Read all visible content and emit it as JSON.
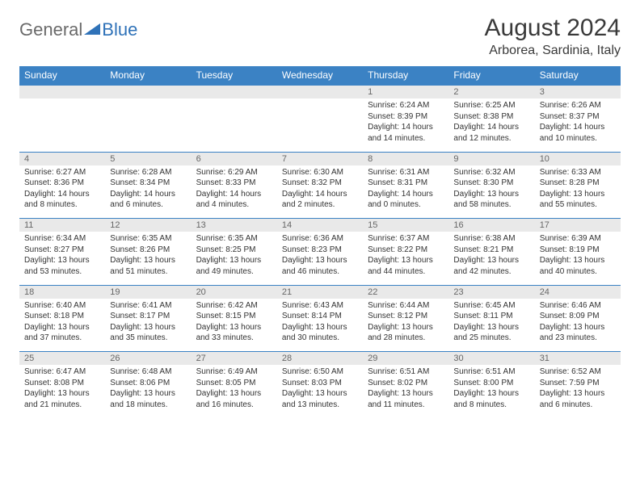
{
  "logo": {
    "general": "General",
    "blue": "Blue"
  },
  "title": "August 2024",
  "location": "Arborea, Sardinia, Italy",
  "colors": {
    "header_bg": "#3b82c4",
    "header_text": "#ffffff",
    "daynum_bg": "#e9e9e9",
    "border": "#3b82c4",
    "text": "#333333",
    "logo_gray": "#6a6a6a",
    "logo_blue": "#2f72b8"
  },
  "typography": {
    "title_fontsize": 30,
    "location_fontsize": 16,
    "header_fontsize": 12,
    "cell_fontsize": 10
  },
  "day_headers": [
    "Sunday",
    "Monday",
    "Tuesday",
    "Wednesday",
    "Thursday",
    "Friday",
    "Saturday"
  ],
  "weeks": [
    [
      {
        "n": "",
        "sr": "",
        "ss": "",
        "dl": ""
      },
      {
        "n": "",
        "sr": "",
        "ss": "",
        "dl": ""
      },
      {
        "n": "",
        "sr": "",
        "ss": "",
        "dl": ""
      },
      {
        "n": "",
        "sr": "",
        "ss": "",
        "dl": ""
      },
      {
        "n": "1",
        "sr": "Sunrise: 6:24 AM",
        "ss": "Sunset: 8:39 PM",
        "dl": "Daylight: 14 hours and 14 minutes."
      },
      {
        "n": "2",
        "sr": "Sunrise: 6:25 AM",
        "ss": "Sunset: 8:38 PM",
        "dl": "Daylight: 14 hours and 12 minutes."
      },
      {
        "n": "3",
        "sr": "Sunrise: 6:26 AM",
        "ss": "Sunset: 8:37 PM",
        "dl": "Daylight: 14 hours and 10 minutes."
      }
    ],
    [
      {
        "n": "4",
        "sr": "Sunrise: 6:27 AM",
        "ss": "Sunset: 8:36 PM",
        "dl": "Daylight: 14 hours and 8 minutes."
      },
      {
        "n": "5",
        "sr": "Sunrise: 6:28 AM",
        "ss": "Sunset: 8:34 PM",
        "dl": "Daylight: 14 hours and 6 minutes."
      },
      {
        "n": "6",
        "sr": "Sunrise: 6:29 AM",
        "ss": "Sunset: 8:33 PM",
        "dl": "Daylight: 14 hours and 4 minutes."
      },
      {
        "n": "7",
        "sr": "Sunrise: 6:30 AM",
        "ss": "Sunset: 8:32 PM",
        "dl": "Daylight: 14 hours and 2 minutes."
      },
      {
        "n": "8",
        "sr": "Sunrise: 6:31 AM",
        "ss": "Sunset: 8:31 PM",
        "dl": "Daylight: 14 hours and 0 minutes."
      },
      {
        "n": "9",
        "sr": "Sunrise: 6:32 AM",
        "ss": "Sunset: 8:30 PM",
        "dl": "Daylight: 13 hours and 58 minutes."
      },
      {
        "n": "10",
        "sr": "Sunrise: 6:33 AM",
        "ss": "Sunset: 8:28 PM",
        "dl": "Daylight: 13 hours and 55 minutes."
      }
    ],
    [
      {
        "n": "11",
        "sr": "Sunrise: 6:34 AM",
        "ss": "Sunset: 8:27 PM",
        "dl": "Daylight: 13 hours and 53 minutes."
      },
      {
        "n": "12",
        "sr": "Sunrise: 6:35 AM",
        "ss": "Sunset: 8:26 PM",
        "dl": "Daylight: 13 hours and 51 minutes."
      },
      {
        "n": "13",
        "sr": "Sunrise: 6:35 AM",
        "ss": "Sunset: 8:25 PM",
        "dl": "Daylight: 13 hours and 49 minutes."
      },
      {
        "n": "14",
        "sr": "Sunrise: 6:36 AM",
        "ss": "Sunset: 8:23 PM",
        "dl": "Daylight: 13 hours and 46 minutes."
      },
      {
        "n": "15",
        "sr": "Sunrise: 6:37 AM",
        "ss": "Sunset: 8:22 PM",
        "dl": "Daylight: 13 hours and 44 minutes."
      },
      {
        "n": "16",
        "sr": "Sunrise: 6:38 AM",
        "ss": "Sunset: 8:21 PM",
        "dl": "Daylight: 13 hours and 42 minutes."
      },
      {
        "n": "17",
        "sr": "Sunrise: 6:39 AM",
        "ss": "Sunset: 8:19 PM",
        "dl": "Daylight: 13 hours and 40 minutes."
      }
    ],
    [
      {
        "n": "18",
        "sr": "Sunrise: 6:40 AM",
        "ss": "Sunset: 8:18 PM",
        "dl": "Daylight: 13 hours and 37 minutes."
      },
      {
        "n": "19",
        "sr": "Sunrise: 6:41 AM",
        "ss": "Sunset: 8:17 PM",
        "dl": "Daylight: 13 hours and 35 minutes."
      },
      {
        "n": "20",
        "sr": "Sunrise: 6:42 AM",
        "ss": "Sunset: 8:15 PM",
        "dl": "Daylight: 13 hours and 33 minutes."
      },
      {
        "n": "21",
        "sr": "Sunrise: 6:43 AM",
        "ss": "Sunset: 8:14 PM",
        "dl": "Daylight: 13 hours and 30 minutes."
      },
      {
        "n": "22",
        "sr": "Sunrise: 6:44 AM",
        "ss": "Sunset: 8:12 PM",
        "dl": "Daylight: 13 hours and 28 minutes."
      },
      {
        "n": "23",
        "sr": "Sunrise: 6:45 AM",
        "ss": "Sunset: 8:11 PM",
        "dl": "Daylight: 13 hours and 25 minutes."
      },
      {
        "n": "24",
        "sr": "Sunrise: 6:46 AM",
        "ss": "Sunset: 8:09 PM",
        "dl": "Daylight: 13 hours and 23 minutes."
      }
    ],
    [
      {
        "n": "25",
        "sr": "Sunrise: 6:47 AM",
        "ss": "Sunset: 8:08 PM",
        "dl": "Daylight: 13 hours and 21 minutes."
      },
      {
        "n": "26",
        "sr": "Sunrise: 6:48 AM",
        "ss": "Sunset: 8:06 PM",
        "dl": "Daylight: 13 hours and 18 minutes."
      },
      {
        "n": "27",
        "sr": "Sunrise: 6:49 AM",
        "ss": "Sunset: 8:05 PM",
        "dl": "Daylight: 13 hours and 16 minutes."
      },
      {
        "n": "28",
        "sr": "Sunrise: 6:50 AM",
        "ss": "Sunset: 8:03 PM",
        "dl": "Daylight: 13 hours and 13 minutes."
      },
      {
        "n": "29",
        "sr": "Sunrise: 6:51 AM",
        "ss": "Sunset: 8:02 PM",
        "dl": "Daylight: 13 hours and 11 minutes."
      },
      {
        "n": "30",
        "sr": "Sunrise: 6:51 AM",
        "ss": "Sunset: 8:00 PM",
        "dl": "Daylight: 13 hours and 8 minutes."
      },
      {
        "n": "31",
        "sr": "Sunrise: 6:52 AM",
        "ss": "Sunset: 7:59 PM",
        "dl": "Daylight: 13 hours and 6 minutes."
      }
    ]
  ]
}
